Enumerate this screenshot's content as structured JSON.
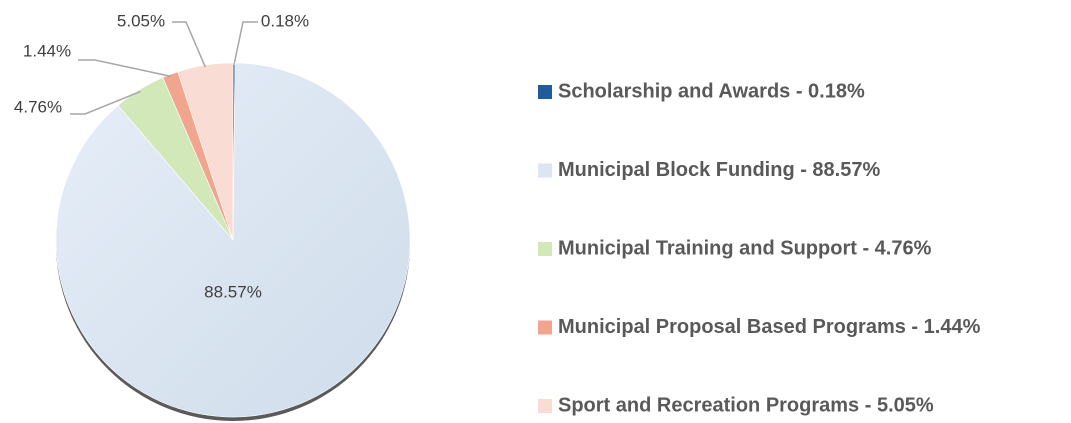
{
  "chart_data": {
    "type": "pie",
    "categories": [
      "Scholarship and Awards - 0.18%",
      "Municipal Block Funding - 88.57%",
      "Municipal Training and Support - 4.76%",
      "Municipal Proposal Based Programs - 1.44%",
      "Sport and Recreation Programs - 5.05%"
    ],
    "values": [
      0.18,
      88.57,
      4.76,
      1.44,
      5.05
    ],
    "value_labels": [
      "0.18%",
      "88.57%",
      "4.76%",
      "1.44%",
      "5.05%"
    ],
    "colors": [
      "#1f5c99",
      "#dce6f2",
      "#d3e8b8",
      "#f2a58e",
      "#f9ddd5"
    ],
    "legend": "right"
  }
}
